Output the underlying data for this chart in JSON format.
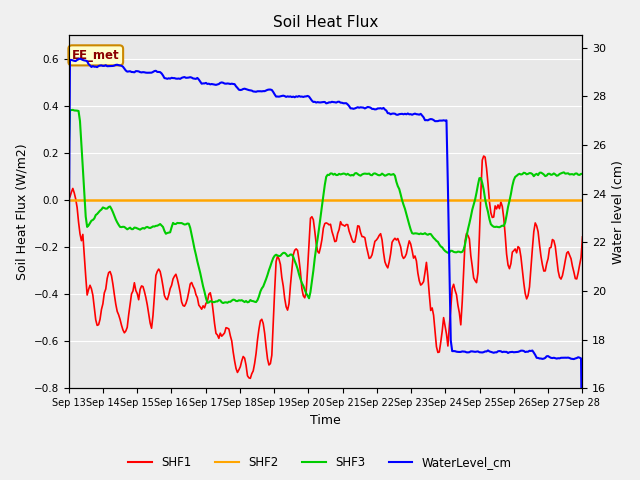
{
  "title": "Soil Heat Flux",
  "xlabel": "Time",
  "ylabel_left": "Soil Heat Flux (W/m2)",
  "ylabel_right": "Water level (cm)",
  "annotation": "EE_met",
  "xlim_days": [
    13,
    28
  ],
  "ylim_left": [
    -0.8,
    0.7
  ],
  "ylim_right": [
    16,
    30.5
  ],
  "xtick_labels": [
    "Sep 13",
    "Sep 14",
    "Sep 15",
    "Sep 16",
    "Sep 17",
    "Sep 18",
    "Sep 19",
    "Sep 20",
    "Sep 21",
    "Sep 22",
    "Sep 23",
    "Sep 24",
    "Sep 25",
    "Sep 26",
    "Sep 27",
    "Sep 28"
  ],
  "background_color": "#f0f0f0",
  "plot_bg_color": "#e8e8e8",
  "colors": {
    "SHF1": "#ff0000",
    "SHF2": "#ffa500",
    "SHF3": "#00cc00",
    "WaterLevel_cm": "#0000ff"
  },
  "legend_labels": [
    "SHF1",
    "SHF2",
    "SHF3",
    "WaterLevel_cm"
  ]
}
